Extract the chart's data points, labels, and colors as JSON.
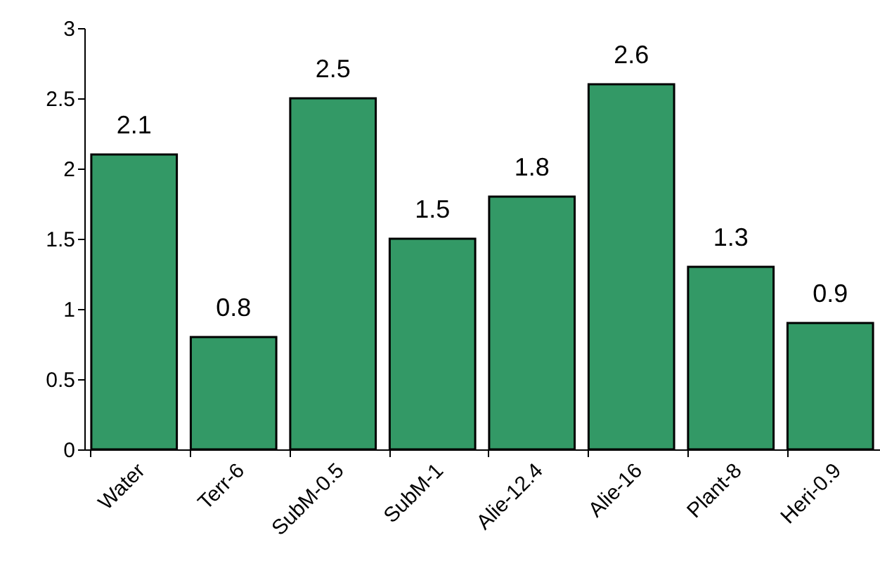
{
  "chart_data": {
    "type": "bar",
    "categories": [
      "Water",
      "Terr-6",
      "SubM-0.5",
      "SubM-1",
      "Alie-12.4",
      "Alie-16",
      "Plant-8",
      "Heri-0.9"
    ],
    "values": [
      2.1,
      0.8,
      2.5,
      1.5,
      1.8,
      2.6,
      1.3,
      0.9
    ],
    "color": "#339966",
    "ylim": [
      0,
      3
    ],
    "yticks": [
      0,
      0.5,
      1,
      1.5,
      2,
      2.5,
      3
    ],
    "data_labels": true,
    "grid": false
  }
}
